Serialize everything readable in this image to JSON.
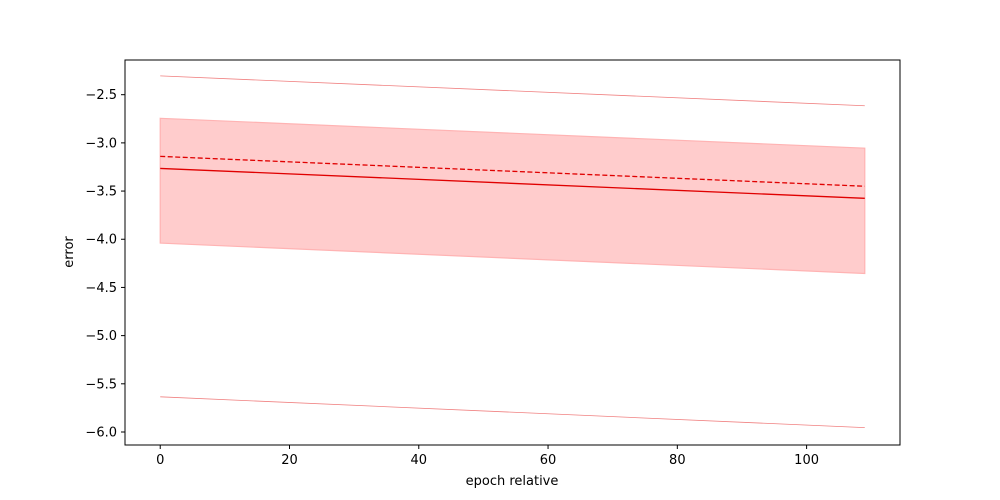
{
  "chart_data": {
    "type": "line",
    "title": "",
    "xlabel": "epoch relative",
    "ylabel": "error",
    "xlim": [
      -5.45,
      114.45
    ],
    "ylim": [
      -6.135,
      -2.14
    ],
    "xticks": [
      0,
      20,
      40,
      60,
      80,
      100
    ],
    "yticks": [
      -6.0,
      -5.5,
      -5.0,
      -4.5,
      -4.0,
      -3.5,
      -3.0,
      -2.5
    ],
    "x": [
      0,
      109
    ],
    "series": [
      {
        "role": "mean",
        "style": "solid",
        "values": [
          -3.265,
          -3.575
        ]
      },
      {
        "role": "median",
        "style": "dashed",
        "values": [
          -3.14,
          -3.45
        ]
      },
      {
        "role": "band",
        "lower": [
          -4.04,
          -4.355
        ],
        "upper": [
          -2.745,
          -3.055
        ]
      },
      {
        "role": "upper-extreme",
        "style": "thin",
        "values": [
          -2.305,
          -2.615
        ]
      },
      {
        "role": "lower-extreme",
        "style": "thin",
        "values": [
          -5.635,
          -5.955
        ]
      }
    ],
    "grid": false,
    "legend": "none",
    "colors": {
      "line": "#e00000",
      "band_fill": "#ffcccc",
      "band_edge": "#ffb3b3",
      "thin": "#f08080"
    }
  }
}
